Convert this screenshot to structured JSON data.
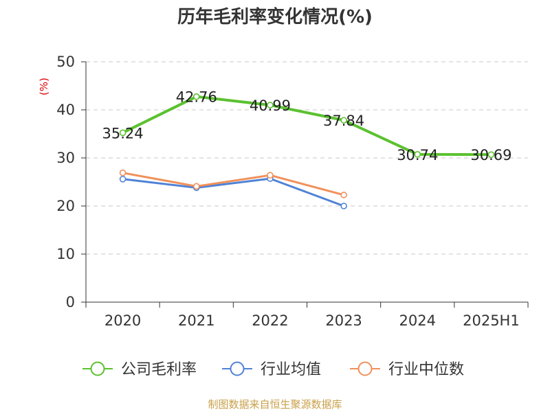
{
  "chart_data": {
    "type": "line",
    "title": "历年毛利率变化情况(%)",
    "ylabel": "(%)",
    "xlabel": "",
    "categories": [
      "2020",
      "2021",
      "2022",
      "2023",
      "2024",
      "2025H1"
    ],
    "ylim": [
      0,
      50
    ],
    "yticks": [
      0,
      10,
      20,
      30,
      40,
      50
    ],
    "grid": true,
    "legend_position": "bottom",
    "series": [
      {
        "name": "公司毛利率",
        "color": "#5bc12f",
        "values": [
          35.24,
          42.76,
          40.99,
          37.84,
          30.74,
          30.69
        ],
        "labels": [
          "35.24",
          "42.76",
          "40.99",
          "37.84",
          "30.74",
          "30.69"
        ]
      },
      {
        "name": "行业均值",
        "color": "#4f82d6",
        "values": [
          25.6,
          23.8,
          25.7,
          20.0,
          null,
          null
        ]
      },
      {
        "name": "行业中位数",
        "color": "#f0905a",
        "values": [
          26.9,
          24.1,
          26.4,
          22.3,
          null,
          null
        ]
      }
    ]
  },
  "source": "制图数据来自恒生聚源数据库"
}
